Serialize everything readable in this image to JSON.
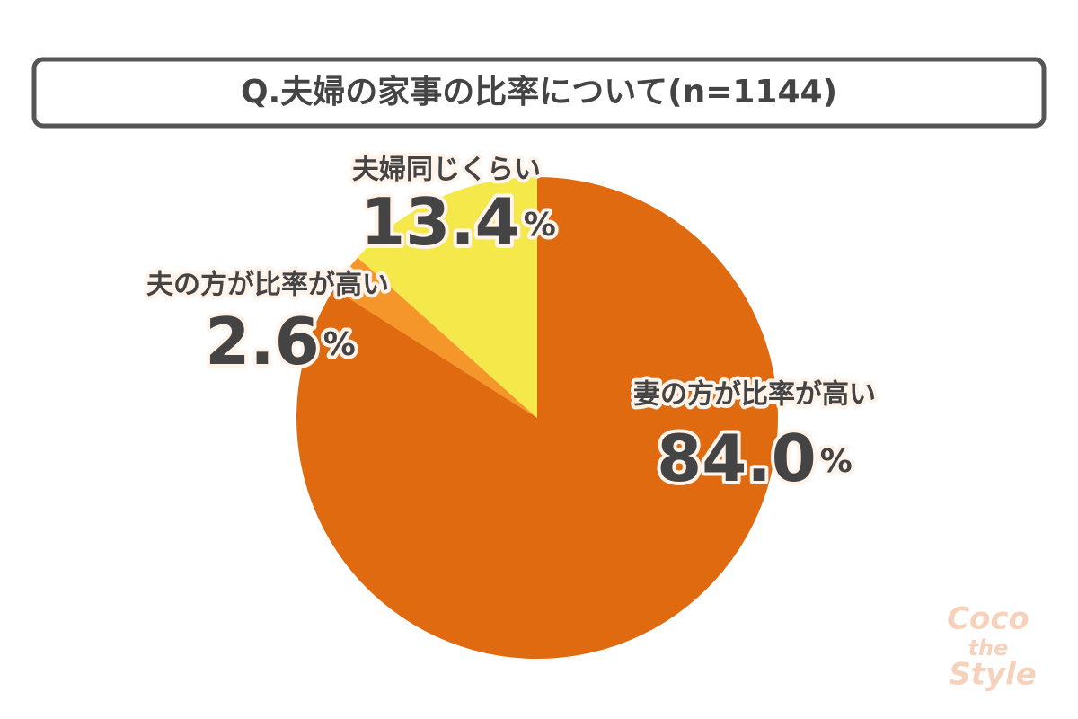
{
  "chart_data": {
    "type": "pie",
    "title": "Q.夫婦の家事の比率について(n=1144)",
    "categories": [
      "妻の方が比率が高い",
      "夫の方が比率が高い",
      "夫婦同じくらい"
    ],
    "values": [
      84,
      2.6,
      13.4
    ],
    "value_labels": [
      "84.0",
      "2.6",
      "13.4"
    ],
    "unit": "%",
    "colors": [
      "#e06a10",
      "#f5962a",
      "#f4e84a"
    ],
    "watermark": [
      "Coco",
      "the",
      "Style"
    ]
  }
}
